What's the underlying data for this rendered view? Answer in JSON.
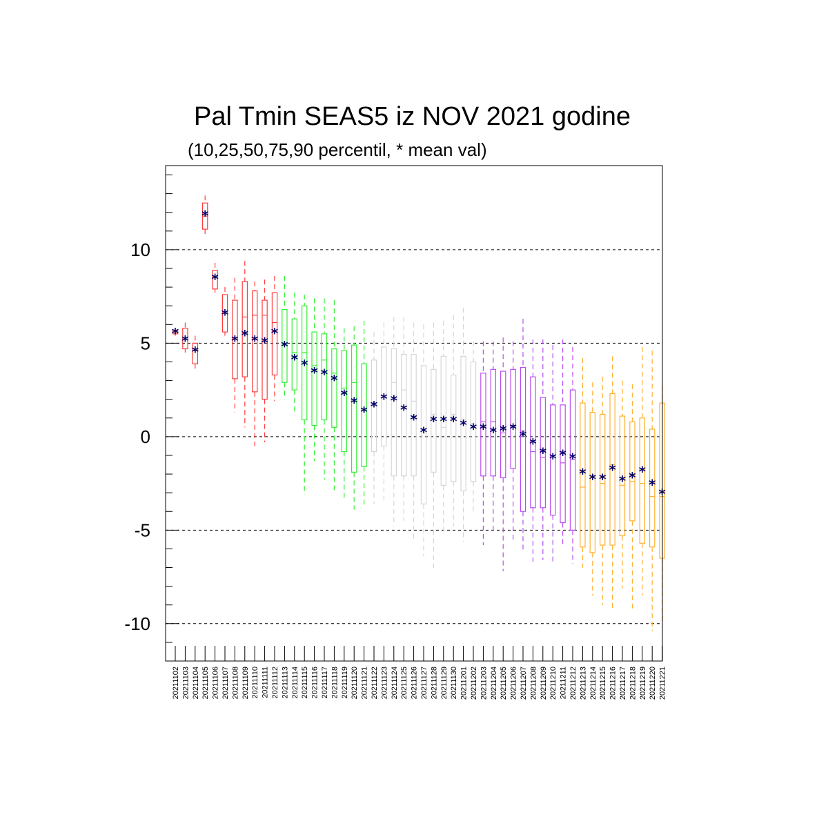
{
  "chart_data": {
    "type": "boxplot",
    "title": "Pal Tmin SEAS5 iz NOV 2021 godine",
    "subtitle": "(10,25,50,75,90 percentil, * mean val)",
    "xlabel": "",
    "ylabel": "",
    "ylim": [
      -12,
      14.5
    ],
    "yticks": [
      10,
      5,
      0,
      -5,
      -10
    ],
    "ytick_labels": [
      "10",
      "5",
      "0",
      "-5",
      "-10"
    ],
    "grid_lines": [
      10,
      5,
      0,
      -5,
      -10
    ],
    "grid_style": "dashed",
    "mean_marker": "*",
    "mean_color": "#000066",
    "groups": [
      {
        "color": "#ff3b3b",
        "from": 0,
        "to": 10
      },
      {
        "color": "#33ee33",
        "from": 11,
        "to": 19
      },
      {
        "color": "#d6d6d6",
        "from": 20,
        "to": 30
      },
      {
        "color": "#b94cf0",
        "from": 31,
        "to": 40
      },
      {
        "color": "#ffb030",
        "from": 41,
        "to": 50
      }
    ],
    "categories": [
      "20211102",
      "20211103",
      "20211104",
      "20211105",
      "20211106",
      "20211107",
      "20211108",
      "20211109",
      "20211110",
      "20211111",
      "20211112",
      "20211113",
      "20211114",
      "20211115",
      "20211116",
      "20211117",
      "20211118",
      "20211119",
      "20211120",
      "20211121",
      "20211122",
      "20211123",
      "20211124",
      "20211125",
      "20211126",
      "20211127",
      "20211128",
      "20211129",
      "20211130",
      "20211201",
      "20211202",
      "20211203",
      "20211204",
      "20211205",
      "20211206",
      "20211207",
      "20211208",
      "20211209",
      "20211210",
      "20211211",
      "20211212",
      "20211213",
      "20211214",
      "20211215",
      "20211216",
      "20211217",
      "20211218",
      "20211219",
      "20211220",
      "20211221"
    ],
    "p10": [
      5.4,
      4.5,
      3.5,
      10.8,
      7.7,
      5.4,
      1.3,
      0.5,
      -0.5,
      -0.3,
      1.9,
      2.0,
      1.2,
      -3.1,
      -1.3,
      -2.3,
      -2.9,
      -3.4,
      -3.9,
      -3.7,
      -3.6,
      -3.5,
      -4.8,
      -4.5,
      -5.5,
      -6.4,
      -7.1,
      -5.2,
      -4.8,
      -5.6,
      -4.0,
      -5.8,
      -5.2,
      -7.2,
      -5.6,
      -6.2,
      -6.7,
      -6.6,
      -6.8,
      -5.8,
      -6.8,
      -7.0,
      -8.5,
      -9.0,
      -9.3,
      -8.1,
      -9.3,
      -8.5,
      -10.4,
      -10.0
    ],
    "p25": [
      5.5,
      4.7,
      3.9,
      11.1,
      7.9,
      5.6,
      3.1,
      3.2,
      2.4,
      2.0,
      3.3,
      2.9,
      2.5,
      0.9,
      0.6,
      0.9,
      0.5,
      -0.8,
      -1.9,
      -1.6,
      -0.8,
      -0.5,
      -2.1,
      -2.1,
      -2.1,
      -3.6,
      -1.9,
      -2.6,
      -2.4,
      -2.9,
      -2.4,
      -2.1,
      -2.1,
      -2.2,
      -1.7,
      -4.0,
      -3.8,
      -3.8,
      -4.2,
      -4.6,
      -5.0,
      -5.9,
      -6.2,
      -5.8,
      -5.8,
      -5.3,
      -4.5,
      -5.7,
      -5.9,
      -6.5
    ],
    "p50": [
      5.6,
      5.2,
      4.6,
      11.8,
      8.5,
      6.6,
      5.3,
      6.4,
      6.5,
      6.5,
      6.1,
      4.9,
      4.5,
      4.5,
      3.8,
      4.1,
      3.4,
      2.6,
      2.9,
      1.4,
      1.8,
      2.0,
      2.9,
      2.5,
      1.9,
      0.2,
      1.2,
      0.5,
      1.2,
      0.9,
      0.7,
      0.8,
      0.8,
      0.2,
      0.6,
      0.3,
      -0.8,
      -1.1,
      -1.0,
      -1.4,
      -1.2,
      -2.7,
      -2.1,
      -2.5,
      -1.5,
      -2.6,
      -2.4,
      -2.5,
      -3.2,
      -3.2
    ],
    "p75": [
      5.7,
      5.8,
      5.0,
      12.5,
      8.9,
      7.6,
      7.3,
      8.3,
      7.8,
      7.3,
      7.7,
      6.8,
      6.3,
      7.0,
      5.6,
      5.5,
      4.7,
      4.6,
      4.9,
      3.9,
      4.1,
      4.8,
      4.7,
      4.4,
      4.4,
      3.8,
      3.6,
      4.3,
      3.3,
      4.3,
      4.0,
      3.4,
      3.6,
      3.5,
      3.6,
      3.7,
      3.2,
      2.1,
      1.7,
      1.7,
      2.5,
      1.8,
      1.3,
      1.2,
      2.3,
      1.1,
      0.8,
      1.0,
      0.4,
      1.8
    ],
    "p90": [
      5.7,
      6.1,
      5.4,
      12.9,
      9.3,
      8.0,
      8.5,
      9.4,
      8.3,
      8.4,
      8.6,
      8.6,
      7.7,
      7.6,
      7.4,
      7.4,
      7.3,
      5.8,
      5.9,
      6.2,
      5.6,
      6.1,
      6.4,
      6.4,
      6.1,
      6.0,
      6.1,
      6.2,
      6.5,
      6.9,
      5.1,
      5.1,
      5.1,
      5.3,
      5.1,
      6.3,
      5.2,
      5.2,
      4.9,
      5.2,
      4.8,
      4.2,
      2.9,
      3.2,
      4.3,
      3.0,
      2.8,
      4.8,
      4.6,
      2.7
    ],
    "mean": [
      5.6,
      5.2,
      4.6,
      11.9,
      8.5,
      6.6,
      5.2,
      5.5,
      5.2,
      5.1,
      5.6,
      4.9,
      4.2,
      3.9,
      3.5,
      3.4,
      3.1,
      2.3,
      1.9,
      1.4,
      1.7,
      2.1,
      2.0,
      1.5,
      1.0,
      0.3,
      0.9,
      0.9,
      0.9,
      0.7,
      0.5,
      0.5,
      0.3,
      0.4,
      0.5,
      0.1,
      -0.3,
      -0.8,
      -1.1,
      -0.9,
      -1.1,
      -1.9,
      -2.2,
      -2.2,
      -1.7,
      -2.3,
      -2.1,
      -1.8,
      -2.5,
      -3.0
    ]
  }
}
